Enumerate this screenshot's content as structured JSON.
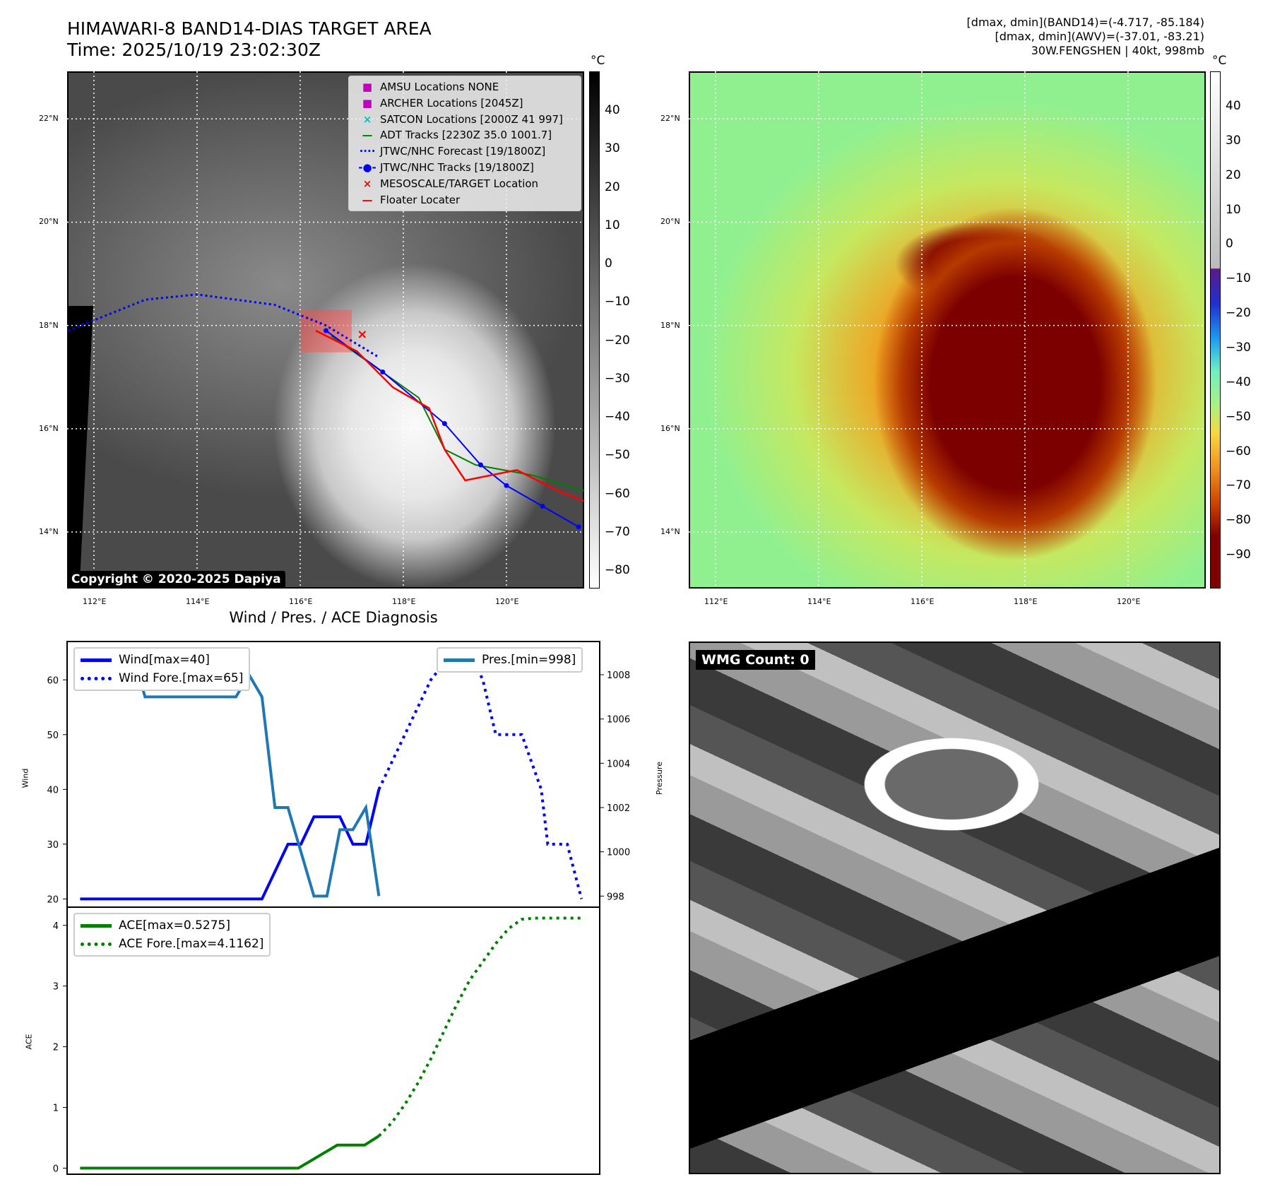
{
  "header": {
    "title": "HIMAWARI-8 BAND14-DIAS TARGET AREA",
    "time": "Time: 2025/10/19 23:02:30Z",
    "stats": [
      "[dmax, dmin](BAND14)=(-4.717, -85.184)",
      "[dmax, dmin](AWV)=(-37.01, -83.21)",
      "30W.FENGSHEN | 40kt, 998mb"
    ]
  },
  "maps": {
    "lat_ticks": [
      "22°N",
      "20°N",
      "18°N",
      "16°N",
      "14°N"
    ],
    "lon_ticks": [
      "112°E",
      "114°E",
      "116°E",
      "118°E",
      "120°E"
    ],
    "unit": "°C",
    "copyright": "Copyright © 2020-2025 Dapiya",
    "cbar1_ticks": [
      "40",
      "30",
      "20",
      "10",
      "0",
      "−10",
      "−20",
      "−30",
      "−40",
      "−50",
      "−60",
      "−70",
      "−80"
    ],
    "cbar2_ticks": [
      "40",
      "30",
      "20",
      "10",
      "0",
      "−10",
      "−20",
      "−30",
      "−40",
      "−50",
      "−60",
      "−70",
      "−80",
      "−90"
    ],
    "legend": [
      {
        "label": "AMSU Locations NONE",
        "sym": "■",
        "color": "#c000c0"
      },
      {
        "label": "ARCHER Locations [2045Z]",
        "sym": "■",
        "color": "#c000c0"
      },
      {
        "label": "SATCON Locations [2000Z 41 997]",
        "sym": "×",
        "color": "#00bfbf"
      },
      {
        "label": "ADT Tracks [2230Z 35.0 1001.7]",
        "sym": "—",
        "color": "#008000"
      },
      {
        "label": "JTWC/NHC Forecast [19/1800Z]",
        "sym": "····",
        "color": "#0000ff"
      },
      {
        "label": "JTWC/NHC Tracks [19/1800Z]",
        "sym": "-●-",
        "color": "#0000ff"
      },
      {
        "label": "MESOSCALE/TARGET Location",
        "sym": "×",
        "color": "#ff0000"
      },
      {
        "label": "Floater Locater",
        "sym": "—",
        "color": "#ff0000"
      }
    ],
    "tracks": {
      "forecast": [
        [
          111.5,
          17.9
        ],
        [
          113,
          18.5
        ],
        [
          114,
          18.6
        ],
        [
          115.5,
          18.4
        ],
        [
          116.5,
          18.0
        ],
        [
          117.5,
          17.4
        ]
      ],
      "jtwc": [
        [
          116.5,
          17.9
        ],
        [
          117.6,
          17.1
        ],
        [
          118.8,
          16.1
        ],
        [
          119.5,
          15.3
        ],
        [
          120,
          14.9
        ],
        [
          120.7,
          14.5
        ],
        [
          121.4,
          14.1
        ]
      ],
      "floater": [
        [
          116.3,
          17.9
        ],
        [
          117.1,
          17.5
        ],
        [
          117.8,
          16.8
        ],
        [
          118.5,
          16.4
        ],
        [
          118.8,
          15.6
        ],
        [
          119.2,
          15.0
        ],
        [
          120.2,
          15.2
        ],
        [
          121,
          14.8
        ],
        [
          121.5,
          14.6
        ]
      ],
      "adt": [
        [
          116.6,
          17.8
        ],
        [
          118.3,
          16.6
        ],
        [
          118.8,
          15.6
        ],
        [
          119.4,
          15.3
        ],
        [
          120.5,
          15.1
        ],
        [
          121.5,
          14.8
        ]
      ]
    }
  },
  "wmg": {
    "label": "WMG Count: 0"
  },
  "chart_data": [
    {
      "type": "line",
      "title": "Wind / Pres. / ACE Diagnosis",
      "ylabel": "Wind",
      "y2label": "Pressure",
      "ylim": [
        18.5,
        67
      ],
      "y2lim": [
        997.5,
        1009.5
      ],
      "xlim": [
        -1,
        40
      ],
      "yticks": [
        20,
        30,
        40,
        50,
        60
      ],
      "y2ticks": [
        998,
        1000,
        1002,
        1004,
        1006,
        1008
      ],
      "series": [
        {
          "name": "Wind[max=40]",
          "axis": "left",
          "style": "solid",
          "color": "#0000ff",
          "points": [
            [
              0,
              20
            ],
            [
              14,
              20
            ],
            [
              16,
              30
            ],
            [
              17,
              30
            ],
            [
              18,
              35
            ],
            [
              20,
              35
            ],
            [
              21,
              30
            ],
            [
              22,
              30
            ],
            [
              23,
              40
            ]
          ]
        },
        {
          "name": "Wind Fore.[max=65]",
          "axis": "left",
          "style": "dotted",
          "color": "#0000ff",
          "points": [
            [
              23,
              40
            ],
            [
              25,
              50
            ],
            [
              27,
              60
            ],
            [
              28.5,
              64.5
            ],
            [
              30,
              65
            ],
            [
              31,
              60
            ],
            [
              32,
              50
            ],
            [
              34,
              50
            ],
            [
              35.5,
              40
            ],
            [
              36,
              30
            ],
            [
              37.5,
              30
            ],
            [
              38.6,
              20
            ]
          ]
        },
        {
          "name": "Pres.[min=998]",
          "axis": "right",
          "style": "solid",
          "color": "#1f77b4",
          "points": [
            [
              0,
              1009
            ],
            [
              4,
              1009
            ],
            [
              5,
              1007
            ],
            [
              12,
              1007
            ],
            [
              13,
              1008
            ],
            [
              14,
              1007
            ],
            [
              15,
              1002
            ],
            [
              16,
              1002
            ],
            [
              18,
              998
            ],
            [
              19,
              998
            ],
            [
              20,
              1001
            ],
            [
              21,
              1001
            ],
            [
              22,
              1002
            ],
            [
              23,
              998
            ]
          ]
        }
      ]
    },
    {
      "type": "line",
      "ylabel": "ACE",
      "ylim": [
        -0.1,
        4.3
      ],
      "xlim": [
        -1,
        40
      ],
      "yticks": [
        0,
        1,
        2,
        3,
        4
      ],
      "series": [
        {
          "name": "ACE[max=0.5275]",
          "style": "solid",
          "color": "#008000",
          "points": [
            [
              0,
              0
            ],
            [
              16.8,
              0
            ],
            [
              19.8,
              0.38
            ],
            [
              21.9,
              0.38
            ],
            [
              23,
              0.53
            ]
          ]
        },
        {
          "name": "ACE Fore.[max=4.1162]",
          "style": "dotted",
          "color": "#008000",
          "points": [
            [
              23,
              0.53
            ],
            [
              24,
              0.75
            ],
            [
              25,
              1.05
            ],
            [
              26,
              1.4
            ],
            [
              27,
              1.8
            ],
            [
              28,
              2.25
            ],
            [
              29,
              2.7
            ],
            [
              30,
              3.1
            ],
            [
              31,
              3.4
            ],
            [
              32,
              3.7
            ],
            [
              33,
              3.95
            ],
            [
              34,
              4.1
            ],
            [
              35,
              4.12
            ],
            [
              38.6,
              4.12
            ]
          ]
        }
      ]
    }
  ]
}
